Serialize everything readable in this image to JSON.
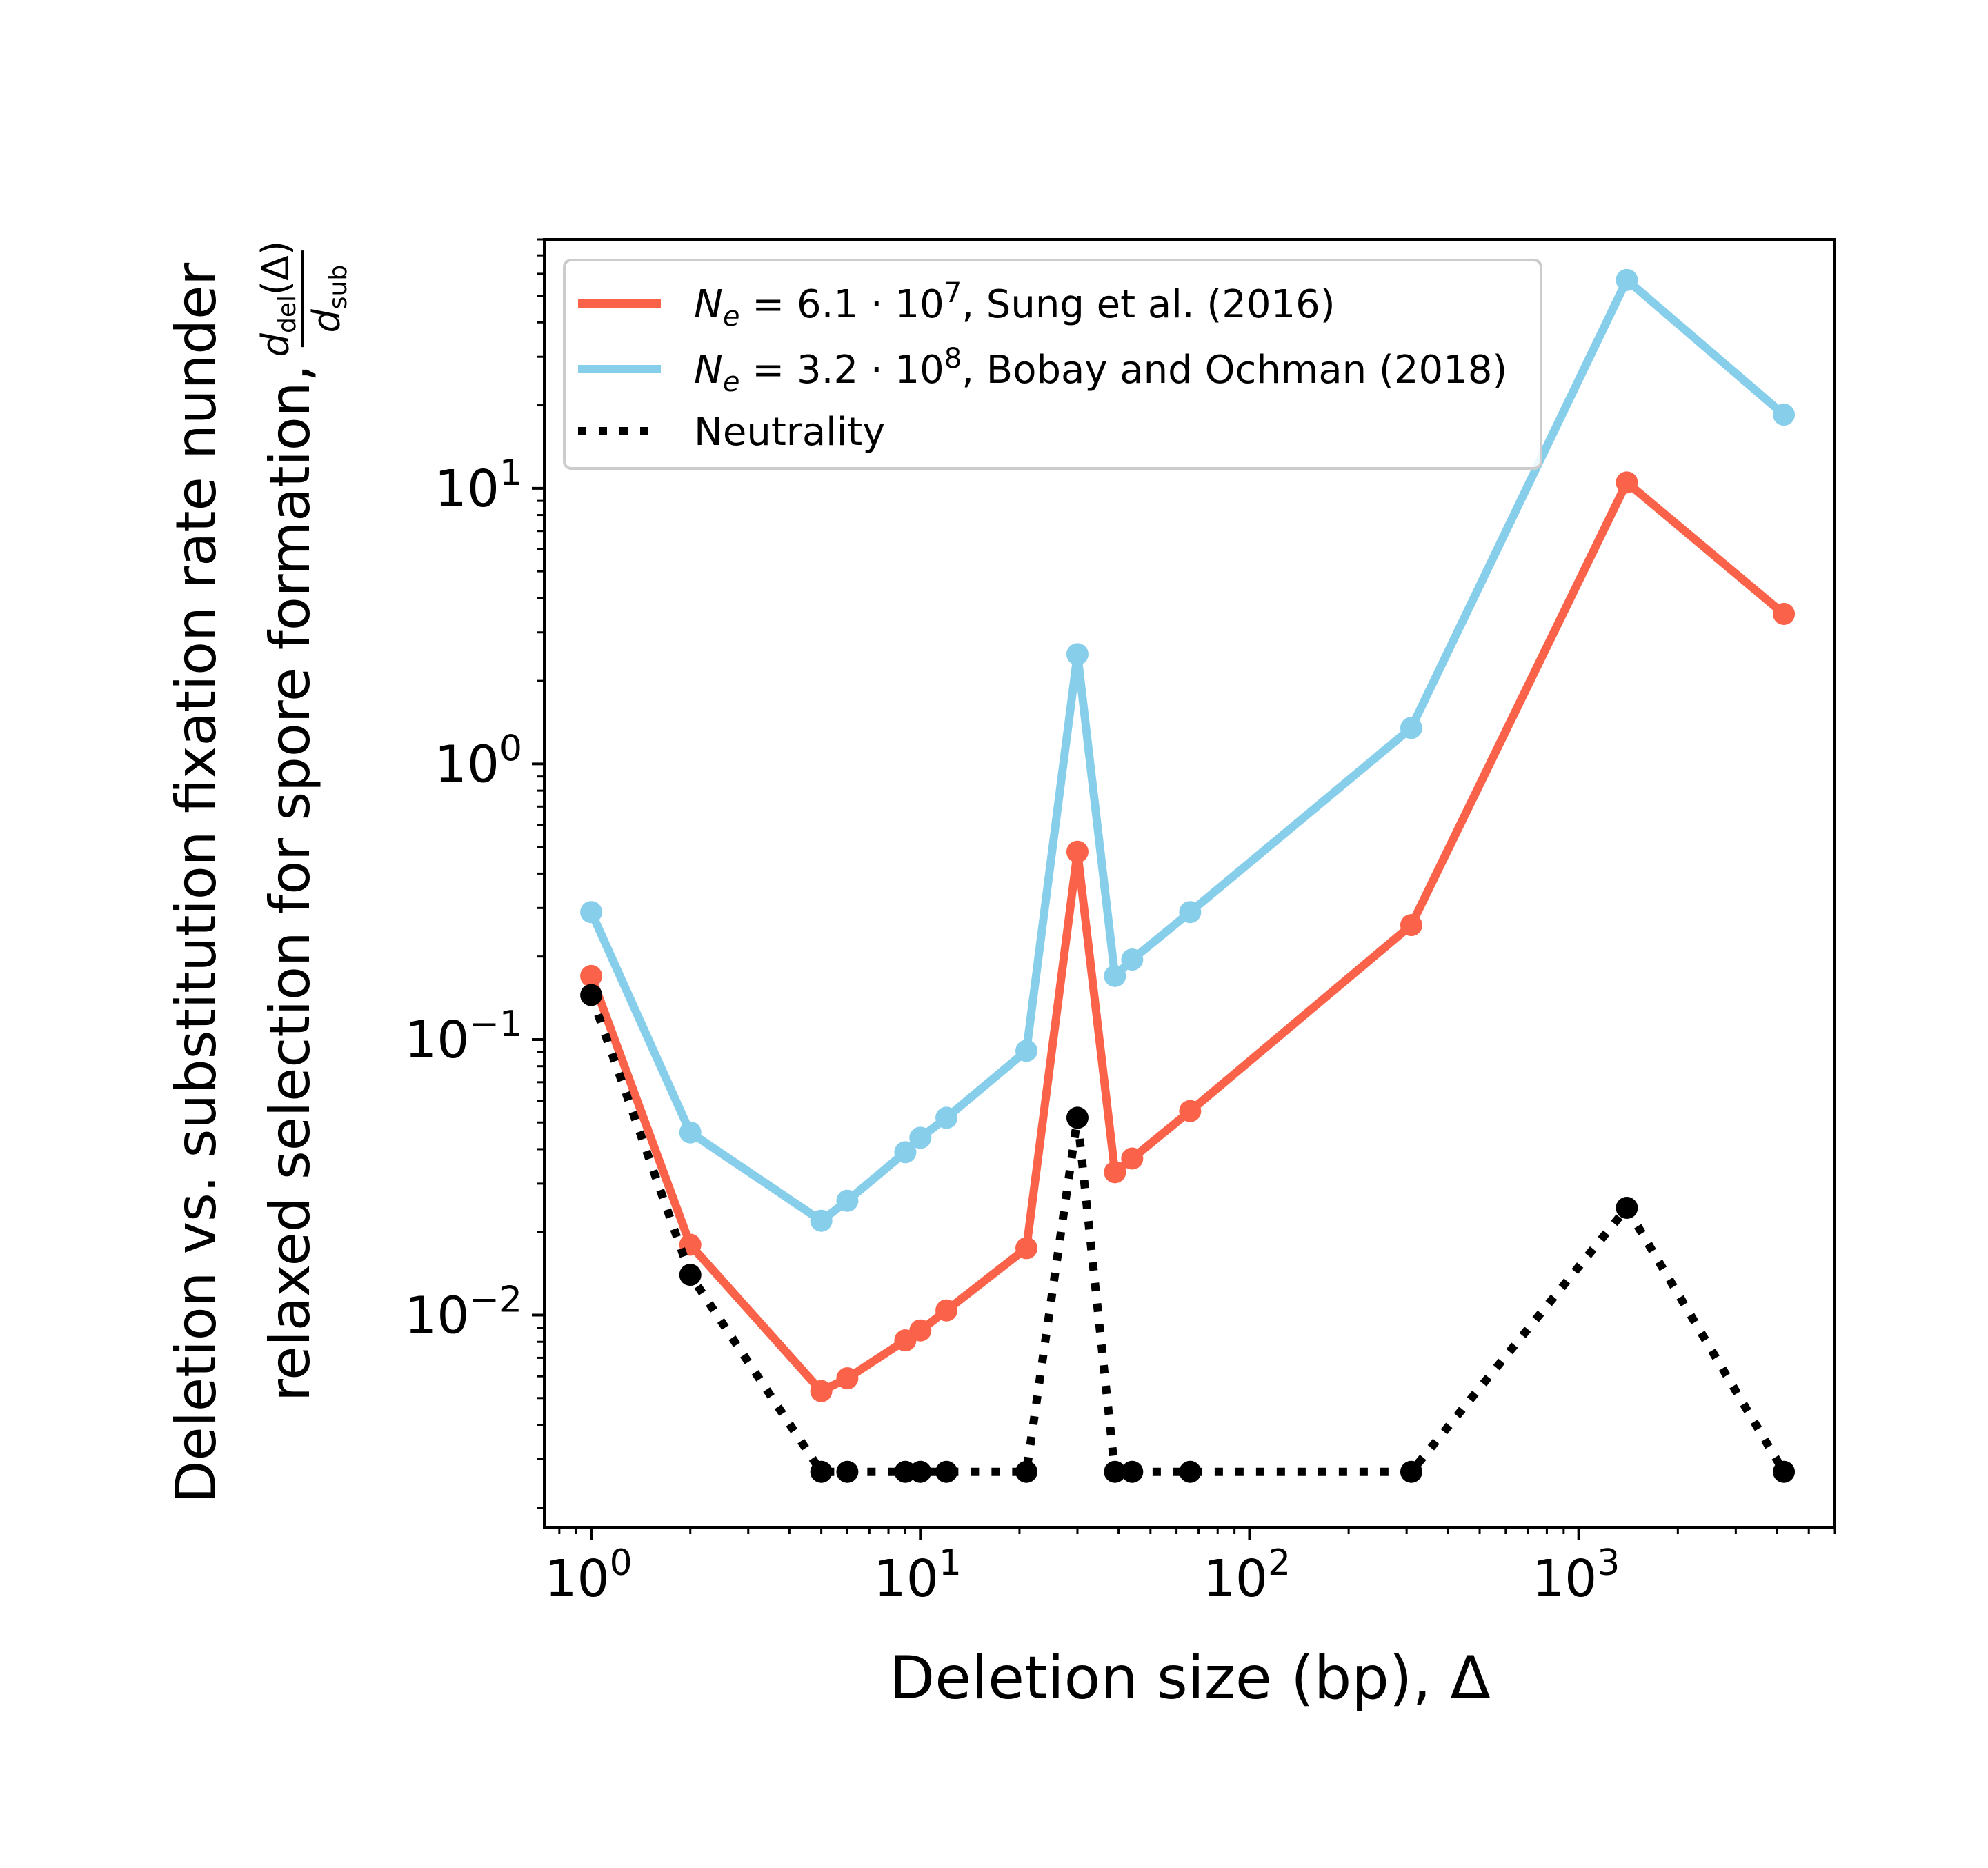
{
  "chart_data": {
    "type": "line",
    "x_scale": "log",
    "y_scale": "log",
    "xlim": [
      0.72,
      6000
    ],
    "ylim": [
      0.0017,
      80
    ],
    "xlabel": "Deletion size (bp), Δ",
    "ylabel_line1": "Deletion vs. substitution fixation rate nunder",
    "ylabel_line2": "relaxed selection for spore formation,",
    "ylabel_frac_num": "d_del(Δ)",
    "ylabel_frac_den": "d_sub",
    "x_ticks": [
      {
        "value": 1,
        "label": "10",
        "exp": "0"
      },
      {
        "value": 10,
        "label": "10",
        "exp": "1"
      },
      {
        "value": 100,
        "label": "10",
        "exp": "2"
      },
      {
        "value": 1000,
        "label": "10",
        "exp": "3"
      }
    ],
    "y_ticks": [
      {
        "value": 0.01,
        "label": "10",
        "exp": "−2"
      },
      {
        "value": 0.1,
        "label": "10",
        "exp": "−1"
      },
      {
        "value": 1,
        "label": "10",
        "exp": "0"
      },
      {
        "value": 10,
        "label": "10",
        "exp": "1"
      }
    ],
    "legend_position": "top-left",
    "series": [
      {
        "name": "N_e = 6.1 · 10^7, Sung et al. (2016)",
        "legend_main": "N",
        "legend_sub": "e",
        "legend_mid": " = 6.1 · 10",
        "legend_sup": "7",
        "legend_tail": ", Sung et al. (2016)",
        "color": "#FA6249",
        "style": "solid",
        "x": [
          1,
          2,
          5,
          6,
          9,
          10,
          12,
          21,
          30,
          39,
          44,
          66,
          310,
          1400,
          4200
        ],
        "y": [
          0.17,
          0.018,
          0.0053,
          0.0059,
          0.0081,
          0.0088,
          0.0104,
          0.0175,
          0.48,
          0.033,
          0.037,
          0.055,
          0.26,
          10.5,
          3.5
        ]
      },
      {
        "name": "N_e = 3.2 · 10^8, Bobay and Ochman (2018)",
        "legend_main": "N",
        "legend_sub": "e",
        "legend_mid": " = 3.2 · 10",
        "legend_sup": "8",
        "legend_tail": ", Bobay and Ochman (2018)",
        "color": "#87CEEB",
        "style": "solid",
        "x": [
          1,
          2,
          5,
          6,
          9,
          10,
          12,
          21,
          30,
          39,
          44,
          66,
          310,
          1400,
          4200
        ],
        "y": [
          0.29,
          0.046,
          0.022,
          0.026,
          0.039,
          0.044,
          0.052,
          0.091,
          2.5,
          0.17,
          0.195,
          0.29,
          1.35,
          57,
          18.5
        ]
      },
      {
        "name": "Neutrality",
        "legend_main": "Neutrality",
        "color": "#000000",
        "style": "dotted",
        "x": [
          1,
          2,
          5,
          6,
          9,
          10,
          12,
          21,
          30,
          39,
          44,
          66,
          310,
          1400,
          4200
        ],
        "y": [
          0.145,
          0.014,
          0.0027,
          0.0027,
          0.0027,
          0.0027,
          0.0027,
          0.0027,
          0.052,
          0.0027,
          0.0027,
          0.0027,
          0.0027,
          0.0245,
          0.0027
        ]
      }
    ]
  }
}
